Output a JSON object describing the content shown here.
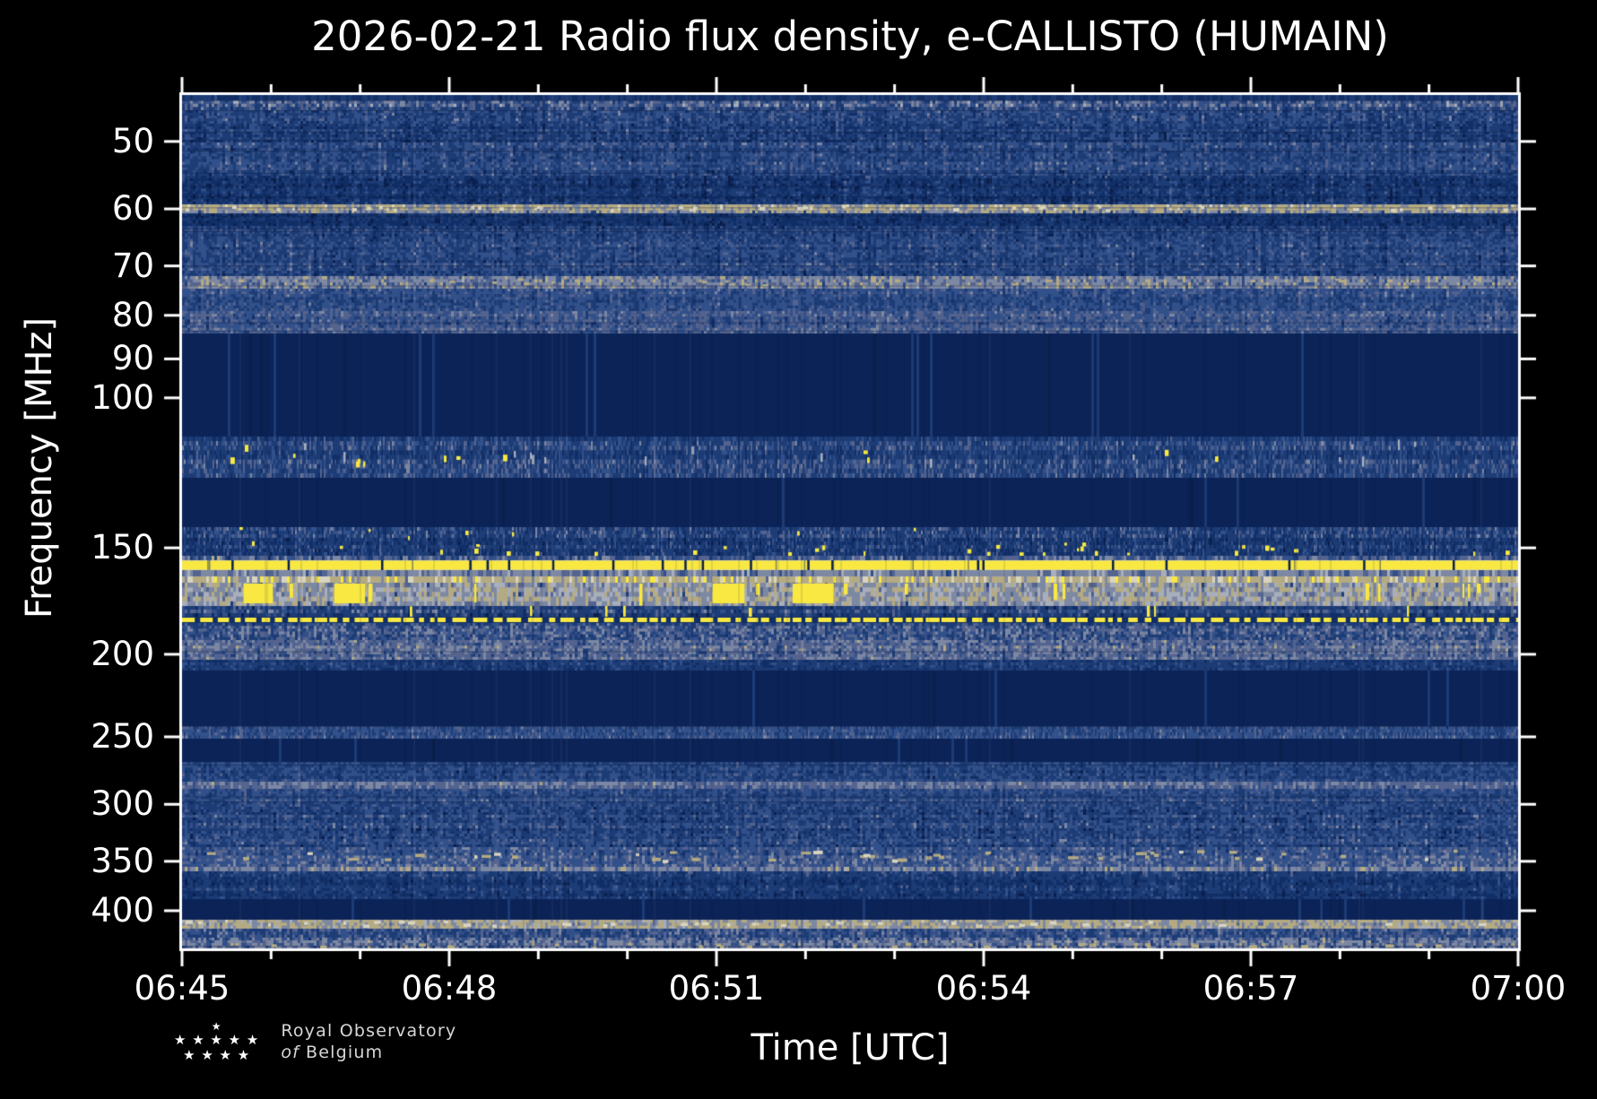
{
  "figure": {
    "title": "2026-02-21 Radio flux density, e-CALLISTO (HUMAIN)",
    "xlabel": "Time [UTC]",
    "ylabel": "Frequency [MHz]",
    "date": "2026-02-21",
    "network": "e-CALLISTO",
    "station": "HUMAIN",
    "background_color": "#000000",
    "text_color": "#ffffff"
  },
  "logo": {
    "star_rows": [
      "★",
      "★ ★ ★ ★ ★",
      "★ ★ ★ ★"
    ],
    "line1": "Royal Observatory",
    "line2_italic": "of",
    "line2_regular": "Belgium"
  },
  "chart_data": {
    "type": "heatmap",
    "title": "2026-02-21 Radio flux density, e-CALLISTO (HUMAIN)",
    "xlabel": "Time [UTC]",
    "ylabel": "Frequency [MHz]",
    "x_start": "06:45",
    "x_end": "07:00",
    "duration_min": 15,
    "x_tick_labels": [
      "06:45",
      "06:48",
      "06:51",
      "06:54",
      "06:57",
      "07:00"
    ],
    "x_major_tick_interval_min": 3,
    "x_minor_tick_interval_min": 1,
    "y_scale": "log",
    "y_axis_inverted": true,
    "freq_min_mhz": 44.1,
    "freq_max_mhz": 442.9,
    "y_tick_values_mhz": [
      50,
      60,
      70,
      80,
      90,
      100,
      150,
      200,
      250,
      300,
      350,
      400
    ],
    "grid": false,
    "legend": "none",
    "palette": {
      "background_navy": "#112e66",
      "dark_navy": "#0a1f4c",
      "quiet_navy": "#0b2356",
      "mid_blue": "#1d3c76",
      "light_blue": "#32508a",
      "pale_blue": "#54648f",
      "gray": "#7d88a3",
      "light_gray": "#a8aebb",
      "tan": "#b5ab83",
      "cream": "#d8d4bd",
      "yellow": "#f8e841",
      "white": "#e9e9e9",
      "axis": "#ffffff"
    },
    "bands": [
      {
        "f": [
          44.1,
          44.8
        ],
        "kind": "speckle",
        "cw": 3,
        "ch": 7,
        "colors": [
          "dark_navy",
          "background_navy",
          "background_navy",
          "mid_blue",
          "mid_blue",
          "light_blue"
        ]
      },
      {
        "f": [
          44.8,
          45.9
        ],
        "kind": "speckle",
        "cw": 3,
        "ch": 4,
        "colors": [
          "background_navy",
          "mid_blue",
          "mid_blue",
          "light_blue",
          "pale_blue",
          "gray",
          "light_gray"
        ]
      },
      {
        "f": [
          45.9,
          50.2
        ],
        "kind": "speckle",
        "cw": 3,
        "ch": 3,
        "colors": [
          "dark_navy",
          "background_navy",
          "background_navy",
          "mid_blue",
          "mid_blue",
          "light_blue",
          "light_blue",
          "pale_blue",
          "gray"
        ]
      },
      {
        "f": [
          50.2,
          54.8
        ],
        "kind": "speckle",
        "cw": 3,
        "ch": 3,
        "colors": [
          "dark_navy",
          "background_navy",
          "mid_blue",
          "mid_blue",
          "light_blue",
          "light_blue",
          "pale_blue",
          "gray"
        ]
      },
      {
        "f": [
          54.8,
          59.2
        ],
        "kind": "speckle",
        "cw": 3,
        "ch": 3,
        "colors": [
          "dark_navy",
          "dark_navy",
          "background_navy",
          "background_navy",
          "mid_blue",
          "mid_blue",
          "light_blue",
          "pale_blue"
        ]
      },
      {
        "f": [
          59.2,
          60.7
        ],
        "kind": "speckle",
        "cw": 3,
        "ch": 4,
        "colors": [
          "mid_blue",
          "pale_blue",
          "gray",
          "gray",
          "tan",
          "tan",
          "tan",
          "cream"
        ],
        "dots": [
          {
            "p": 0.05,
            "color": "cream",
            "row": 0.5,
            "w": [
              3,
              7
            ],
            "h": [
              3,
              4
            ]
          }
        ]
      },
      {
        "f": [
          60.7,
          62.8
        ],
        "kind": "speckle",
        "cw": 3,
        "ch": 3,
        "colors": [
          "dark_navy",
          "dark_navy",
          "background_navy",
          "background_navy",
          "mid_blue",
          "mid_blue",
          "light_blue"
        ]
      },
      {
        "f": [
          62.8,
          71.9
        ],
        "kind": "speckle",
        "cw": 3,
        "ch": 3,
        "colors": [
          "dark_navy",
          "background_navy",
          "mid_blue",
          "mid_blue",
          "light_blue",
          "light_blue",
          "pale_blue",
          "gray"
        ]
      },
      {
        "f": [
          71.9,
          74.4
        ],
        "kind": "speckle",
        "cw": 3,
        "ch": 4,
        "colors": [
          "mid_blue",
          "light_blue",
          "pale_blue",
          "gray",
          "gray",
          "tan",
          "light_gray"
        ],
        "dots": [
          {
            "p": 0.03,
            "color": "tan",
            "row": 0.5,
            "w": [
              3,
              7
            ],
            "h": [
              2,
              3
            ]
          }
        ]
      },
      {
        "f": [
          74.4,
          79.1
        ],
        "kind": "speckle",
        "cw": 3,
        "ch": 3,
        "colors": [
          "background_navy",
          "mid_blue",
          "mid_blue",
          "light_blue",
          "light_blue",
          "pale_blue",
          "gray"
        ]
      },
      {
        "f": [
          79.1,
          84.0
        ],
        "kind": "speckle",
        "cw": 3,
        "ch": 3,
        "colors": [
          "background_navy",
          "mid_blue",
          "light_blue",
          "light_blue",
          "pale_blue",
          "pale_blue",
          "gray",
          "gray"
        ]
      },
      {
        "f": [
          84.0,
          111.0
        ],
        "kind": "speckle",
        "cw": 3,
        "ch": 200,
        "colors": [
          "dark_navy",
          "quiet_navy",
          "quiet_navy",
          "quiet_navy",
          "quiet_navy",
          "mid_blue"
        ]
      },
      {
        "f": [
          111.0,
          124.1
        ],
        "kind": "speckle",
        "cw": 2,
        "ch": 5,
        "colors": [
          "background_navy",
          "background_navy",
          "mid_blue",
          "mid_blue",
          "light_blue",
          "pale_blue",
          "gray"
        ],
        "dots": [
          {
            "p": 0.02,
            "color": "yellow",
            "row": 0.5,
            "w": [
              2,
              5
            ],
            "h": [
              4,
              8
            ]
          },
          {
            "p": 0.025,
            "color": "light_gray",
            "row": 0.4,
            "w": [
              2,
              3
            ],
            "h": [
              5,
              12
            ]
          }
        ]
      },
      {
        "f": [
          124.1,
          141.8
        ],
        "kind": "speckle",
        "cw": 3,
        "ch": 200,
        "colors": [
          "dark_navy",
          "quiet_navy",
          "quiet_navy",
          "quiet_navy",
          "quiet_navy",
          "mid_blue"
        ]
      },
      {
        "f": [
          141.8,
          153.2
        ],
        "kind": "speckle",
        "cw": 2,
        "ch": 4,
        "colors": [
          "dark_navy",
          "background_navy",
          "background_navy",
          "mid_blue",
          "mid_blue",
          "light_blue",
          "pale_blue",
          "gray"
        ],
        "dots": [
          {
            "p": 0.05,
            "color": "yellow",
            "row": 0.82,
            "w": [
              2,
              5
            ],
            "h": [
              3,
              6
            ]
          },
          {
            "p": 0.015,
            "color": "yellow",
            "row": 0.2,
            "w": [
              2,
              4
            ],
            "h": [
              3,
              5
            ]
          }
        ]
      },
      {
        "f": [
          153.2,
          155.1
        ],
        "kind": "speckle",
        "cw": 3,
        "ch": 5,
        "colors": [
          "background_navy",
          "mid_blue",
          "light_blue",
          "pale_blue",
          "gray",
          "tan"
        ]
      },
      {
        "f": [
          155.1,
          159.3
        ],
        "kind": "solid_line",
        "color": "yellow"
      },
      {
        "f": [
          159.3,
          162.0
        ],
        "kind": "speckle",
        "cw": 3,
        "ch": 6,
        "colors": [
          "mid_blue",
          "light_blue",
          "pale_blue",
          "gray",
          "gray",
          "light_gray",
          "tan"
        ]
      },
      {
        "f": [
          162.0,
          164.8
        ],
        "kind": "speckle",
        "cw": 3,
        "ch": 6,
        "colors": [
          "pale_blue",
          "gray",
          "tan",
          "tan",
          "cream",
          "yellow",
          "yellow"
        ]
      },
      {
        "f": [
          164.8,
          175.5
        ],
        "kind": "pager",
        "cw": 3,
        "ch": 5,
        "colors": [
          "mid_blue",
          "pale_blue",
          "gray",
          "gray",
          "light_gray",
          "tan",
          "tan",
          "pale_blue"
        ]
      },
      {
        "f": [
          175.5,
          180.7
        ],
        "kind": "speckle",
        "cw": 3,
        "ch": 4,
        "colors": [
          "dark_navy",
          "background_navy",
          "mid_blue",
          "mid_blue",
          "light_blue",
          "pale_blue",
          "gray"
        ],
        "dots": [
          {
            "p": 0.012,
            "color": "yellow",
            "row": 0.4,
            "w": [
              2,
              4
            ],
            "h": [
              9,
              13
            ]
          }
        ]
      },
      {
        "f": [
          180.7,
          183.8
        ],
        "kind": "dashed_line",
        "color": "yellow"
      },
      {
        "f": [
          183.8,
          192.5
        ],
        "kind": "speckle",
        "cw": 3,
        "ch": 3,
        "colors": [
          "background_navy",
          "mid_blue",
          "mid_blue",
          "light_blue",
          "pale_blue",
          "gray",
          "gray"
        ]
      },
      {
        "f": [
          192.5,
          203.0
        ],
        "kind": "speckle",
        "cw": 3,
        "ch": 3,
        "colors": [
          "mid_blue",
          "mid_blue",
          "light_blue",
          "pale_blue",
          "pale_blue",
          "gray",
          "gray",
          "tan"
        ]
      },
      {
        "f": [
          203.0,
          208.9
        ],
        "kind": "speckle",
        "cw": 3,
        "ch": 3,
        "colors": [
          "background_navy",
          "background_navy",
          "mid_blue",
          "mid_blue",
          "light_blue",
          "pale_blue"
        ]
      },
      {
        "f": [
          208.9,
          242.9
        ],
        "kind": "speckle",
        "cw": 3,
        "ch": 200,
        "colors": [
          "dark_navy",
          "quiet_navy",
          "quiet_navy",
          "quiet_navy",
          "quiet_navy",
          "mid_blue"
        ]
      },
      {
        "f": [
          242.9,
          251.2
        ],
        "kind": "speckle",
        "cw": 2,
        "ch": 4,
        "colors": [
          "background_navy",
          "mid_blue",
          "mid_blue",
          "light_blue",
          "light_blue",
          "pale_blue",
          "gray"
        ]
      },
      {
        "f": [
          251.2,
          267.5
        ],
        "kind": "speckle",
        "cw": 3,
        "ch": 200,
        "colors": [
          "dark_navy",
          "quiet_navy",
          "quiet_navy",
          "quiet_navy",
          "quiet_navy",
          "mid_blue"
        ]
      },
      {
        "f": [
          267.5,
          282.3
        ],
        "kind": "speckle",
        "cw": 3,
        "ch": 3,
        "colors": [
          "dark_navy",
          "background_navy",
          "mid_blue",
          "mid_blue",
          "light_blue",
          "light_blue",
          "pale_blue"
        ]
      },
      {
        "f": [
          282.3,
          287.8
        ],
        "kind": "speckle",
        "cw": 3,
        "ch": 4,
        "colors": [
          "mid_blue",
          "light_blue",
          "pale_blue",
          "pale_blue",
          "gray",
          "gray",
          "tan"
        ]
      },
      {
        "f": [
          287.8,
          302.1
        ],
        "kind": "speckle",
        "cw": 3,
        "ch": 3,
        "colors": [
          "background_navy",
          "mid_blue",
          "mid_blue",
          "light_blue",
          "light_blue",
          "pale_blue",
          "gray"
        ]
      },
      {
        "f": [
          302.1,
          336.8
        ],
        "kind": "speckle",
        "cw": 3,
        "ch": 3,
        "colors": [
          "dark_navy",
          "background_navy",
          "mid_blue",
          "mid_blue",
          "light_blue",
          "light_blue",
          "pale_blue",
          "gray"
        ]
      },
      {
        "f": [
          336.8,
          355.3
        ],
        "kind": "speckle",
        "cw": 3,
        "ch": 3,
        "colors": [
          "background_navy",
          "mid_blue",
          "light_blue",
          "light_blue",
          "pale_blue",
          "gray",
          "gray"
        ],
        "dots": [
          {
            "p": 0.05,
            "color": "tan",
            "row": 0.45,
            "w": [
              4,
              12
            ],
            "h": [
              3,
              4
            ]
          },
          {
            "p": 0.02,
            "color": "cream",
            "row": 0.5,
            "w": [
              3,
              8
            ],
            "h": [
              3,
              4
            ]
          }
        ]
      },
      {
        "f": [
          355.3,
          359.6
        ],
        "kind": "speckle",
        "cw": 3,
        "ch": 5,
        "colors": [
          "mid_blue",
          "light_blue",
          "pale_blue",
          "gray",
          "gray",
          "tan",
          "light_gray"
        ]
      },
      {
        "f": [
          359.6,
          387.6
        ],
        "kind": "speckle",
        "cw": 3,
        "ch": 3,
        "colors": [
          "dark_navy",
          "background_navy",
          "background_navy",
          "mid_blue",
          "mid_blue",
          "light_blue",
          "pale_blue"
        ]
      },
      {
        "f": [
          387.6,
          409.8
        ],
        "kind": "speckle",
        "cw": 3,
        "ch": 200,
        "colors": [
          "dark_navy",
          "quiet_navy",
          "quiet_navy",
          "quiet_navy",
          "quiet_navy",
          "mid_blue"
        ]
      },
      {
        "f": [
          409.8,
          419.9
        ],
        "kind": "speckle",
        "cw": 3,
        "ch": 4,
        "colors": [
          "pale_blue",
          "gray",
          "gray",
          "tan",
          "tan",
          "light_gray",
          "cream"
        ],
        "dots": [
          {
            "p": 0.05,
            "color": "cream",
            "row": 0.5,
            "w": [
              3,
              9
            ],
            "h": [
              3,
              4
            ]
          }
        ]
      },
      {
        "f": [
          419.9,
          430.2
        ],
        "kind": "speckle",
        "cw": 3,
        "ch": 3,
        "colors": [
          "background_navy",
          "mid_blue",
          "mid_blue",
          "light_blue",
          "pale_blue",
          "gray"
        ]
      },
      {
        "f": [
          430.2,
          442.9
        ],
        "kind": "speckle",
        "cw": 3,
        "ch": 3,
        "colors": [
          "background_navy",
          "mid_blue",
          "light_blue",
          "pale_blue",
          "gray",
          "gray",
          "tan"
        ],
        "dots": [
          {
            "p": 0.04,
            "color": "tan",
            "row": 0.85,
            "w": [
              3,
              8
            ],
            "h": [
              3,
              4
            ]
          }
        ]
      }
    ],
    "features": {
      "solid_rfi_line": {
        "f_range_mhz": [
          155.1,
          159.3
        ],
        "gap_fracs": [
          0.037,
          0.079,
          0.149,
          0.215,
          0.228,
          0.244,
          0.277,
          0.322,
          0.359,
          0.376,
          0.389,
          0.425,
          0.468,
          0.486,
          0.595,
          0.599,
          0.696,
          0.736,
          0.828,
          0.884,
          0.951
        ]
      },
      "dashed_rfi_line": {
        "f_range_mhz": [
          180.7,
          183.8
        ]
      },
      "pager_band": {
        "f_range_mhz": [
          164.8,
          175.5
        ]
      },
      "pager_blocks_frac": [
        [
          0.046,
          0.068
        ],
        [
          0.114,
          0.137
        ],
        [
          0.397,
          0.421
        ],
        [
          0.457,
          0.488
        ]
      ]
    }
  }
}
